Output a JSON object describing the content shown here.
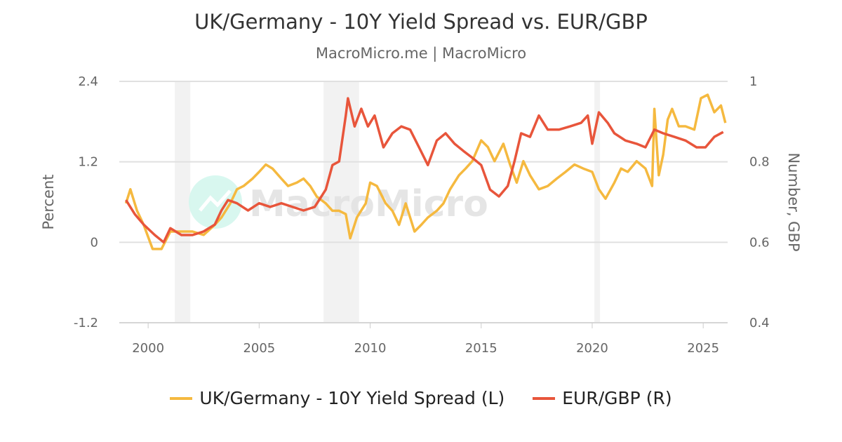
{
  "chart_data": {
    "type": "line",
    "title": "UK/Germany - 10Y Yield Spread vs. EUR/GBP",
    "subtitle": "MacroMicro.me | MacroMicro",
    "watermark": "MacroMicro",
    "xlim": [
      1998.7,
      2026.1
    ],
    "x_ticks": [
      "2000",
      "2005",
      "2010",
      "2015",
      "2020",
      "2025"
    ],
    "y_left": {
      "label": "Percent",
      "ylim": [
        -1.2,
        2.4
      ],
      "ticks": [
        "-1.2",
        "0",
        "1.2",
        "2.4"
      ]
    },
    "y_right": {
      "label": "Number, GBP",
      "ylim": [
        0.4,
        1.0
      ],
      "ticks": [
        "0.4",
        "0.6",
        "0.8",
        "1"
      ]
    },
    "grid": true,
    "legend": "bottom",
    "recessions": [
      [
        2001.2,
        2001.9
      ],
      [
        2007.9,
        2009.5
      ],
      [
        2020.1,
        2020.35
      ]
    ],
    "series": [
      {
        "name": "UK/Germany - 10Y Yield Spread (L)",
        "axis": "left",
        "color": "#f5b93f",
        "points": [
          [
            1999.0,
            0.58
          ],
          [
            1999.2,
            0.79
          ],
          [
            1999.5,
            0.47
          ],
          [
            1999.8,
            0.26
          ],
          [
            2000.2,
            -0.1
          ],
          [
            2000.6,
            -0.1
          ],
          [
            2001.0,
            0.16
          ],
          [
            2001.5,
            0.16
          ],
          [
            2002.0,
            0.16
          ],
          [
            2002.5,
            0.11
          ],
          [
            2003.0,
            0.26
          ],
          [
            2003.3,
            0.37
          ],
          [
            2003.7,
            0.58
          ],
          [
            2004.0,
            0.79
          ],
          [
            2004.3,
            0.84
          ],
          [
            2004.7,
            0.95
          ],
          [
            2005.0,
            1.05
          ],
          [
            2005.3,
            1.16
          ],
          [
            2005.6,
            1.1
          ],
          [
            2006.0,
            0.95
          ],
          [
            2006.3,
            0.84
          ],
          [
            2006.7,
            0.89
          ],
          [
            2007.0,
            0.95
          ],
          [
            2007.3,
            0.84
          ],
          [
            2007.6,
            0.68
          ],
          [
            2008.0,
            0.58
          ],
          [
            2008.3,
            0.47
          ],
          [
            2008.6,
            0.47
          ],
          [
            2008.9,
            0.42
          ],
          [
            2009.1,
            0.06
          ],
          [
            2009.4,
            0.37
          ],
          [
            2009.8,
            0.58
          ],
          [
            2010.0,
            0.89
          ],
          [
            2010.3,
            0.84
          ],
          [
            2010.7,
            0.58
          ],
          [
            2011.0,
            0.47
          ],
          [
            2011.3,
            0.26
          ],
          [
            2011.6,
            0.58
          ],
          [
            2012.0,
            0.16
          ],
          [
            2012.3,
            0.26
          ],
          [
            2012.6,
            0.37
          ],
          [
            2013.0,
            0.47
          ],
          [
            2013.3,
            0.58
          ],
          [
            2013.6,
            0.79
          ],
          [
            2014.0,
            1.0
          ],
          [
            2014.3,
            1.1
          ],
          [
            2014.6,
            1.21
          ],
          [
            2015.0,
            1.52
          ],
          [
            2015.3,
            1.42
          ],
          [
            2015.6,
            1.21
          ],
          [
            2016.0,
            1.47
          ],
          [
            2016.3,
            1.16
          ],
          [
            2016.6,
            0.89
          ],
          [
            2016.9,
            1.21
          ],
          [
            2017.2,
            1.0
          ],
          [
            2017.6,
            0.79
          ],
          [
            2018.0,
            0.84
          ],
          [
            2018.4,
            0.95
          ],
          [
            2018.8,
            1.05
          ],
          [
            2019.2,
            1.16
          ],
          [
            2019.6,
            1.1
          ],
          [
            2020.0,
            1.05
          ],
          [
            2020.3,
            0.79
          ],
          [
            2020.6,
            0.65
          ],
          [
            2021.0,
            0.89
          ],
          [
            2021.3,
            1.1
          ],
          [
            2021.6,
            1.05
          ],
          [
            2022.0,
            1.21
          ],
          [
            2022.4,
            1.1
          ],
          [
            2022.7,
            0.84
          ],
          [
            2022.8,
            1.99
          ],
          [
            2023.0,
            1.0
          ],
          [
            2023.2,
            1.31
          ],
          [
            2023.4,
            1.83
          ],
          [
            2023.6,
            1.99
          ],
          [
            2023.9,
            1.73
          ],
          [
            2024.2,
            1.73
          ],
          [
            2024.6,
            1.68
          ],
          [
            2024.9,
            2.15
          ],
          [
            2025.2,
            2.2
          ],
          [
            2025.5,
            1.94
          ],
          [
            2025.8,
            2.04
          ],
          [
            2026.0,
            1.78
          ]
        ]
      },
      {
        "name": "EUR/GBP (R)",
        "axis": "right",
        "color": "#e8553b",
        "points": [
          [
            1999.0,
            0.705
          ],
          [
            1999.4,
            0.67
          ],
          [
            1999.8,
            0.644
          ],
          [
            2000.3,
            0.618
          ],
          [
            2000.7,
            0.6
          ],
          [
            2001.0,
            0.635
          ],
          [
            2001.5,
            0.618
          ],
          [
            2002.0,
            0.618
          ],
          [
            2002.5,
            0.627
          ],
          [
            2003.0,
            0.644
          ],
          [
            2003.3,
            0.679
          ],
          [
            2003.6,
            0.705
          ],
          [
            2004.0,
            0.697
          ],
          [
            2004.5,
            0.679
          ],
          [
            2005.0,
            0.697
          ],
          [
            2005.5,
            0.688
          ],
          [
            2006.0,
            0.697
          ],
          [
            2006.5,
            0.688
          ],
          [
            2007.0,
            0.679
          ],
          [
            2007.5,
            0.688
          ],
          [
            2008.0,
            0.731
          ],
          [
            2008.3,
            0.792
          ],
          [
            2008.6,
            0.801
          ],
          [
            2008.9,
            0.915
          ],
          [
            2009.0,
            0.958
          ],
          [
            2009.3,
            0.888
          ],
          [
            2009.6,
            0.932
          ],
          [
            2009.9,
            0.888
          ],
          [
            2010.2,
            0.915
          ],
          [
            2010.6,
            0.836
          ],
          [
            2011.0,
            0.871
          ],
          [
            2011.4,
            0.888
          ],
          [
            2011.8,
            0.88
          ],
          [
            2012.2,
            0.836
          ],
          [
            2012.6,
            0.792
          ],
          [
            2013.0,
            0.853
          ],
          [
            2013.4,
            0.871
          ],
          [
            2013.8,
            0.845
          ],
          [
            2014.2,
            0.827
          ],
          [
            2014.6,
            0.81
          ],
          [
            2015.0,
            0.792
          ],
          [
            2015.4,
            0.731
          ],
          [
            2015.8,
            0.714
          ],
          [
            2016.2,
            0.74
          ],
          [
            2016.5,
            0.801
          ],
          [
            2016.8,
            0.871
          ],
          [
            2017.2,
            0.862
          ],
          [
            2017.6,
            0.915
          ],
          [
            2018.0,
            0.88
          ],
          [
            2018.5,
            0.88
          ],
          [
            2019.0,
            0.888
          ],
          [
            2019.5,
            0.897
          ],
          [
            2019.8,
            0.915
          ],
          [
            2020.0,
            0.845
          ],
          [
            2020.3,
            0.923
          ],
          [
            2020.7,
            0.897
          ],
          [
            2021.0,
            0.871
          ],
          [
            2021.5,
            0.853
          ],
          [
            2022.0,
            0.845
          ],
          [
            2022.4,
            0.836
          ],
          [
            2022.8,
            0.88
          ],
          [
            2023.2,
            0.871
          ],
          [
            2023.7,
            0.862
          ],
          [
            2024.2,
            0.853
          ],
          [
            2024.7,
            0.836
          ],
          [
            2025.1,
            0.836
          ],
          [
            2025.5,
            0.862
          ],
          [
            2025.9,
            0.874
          ]
        ]
      }
    ]
  }
}
